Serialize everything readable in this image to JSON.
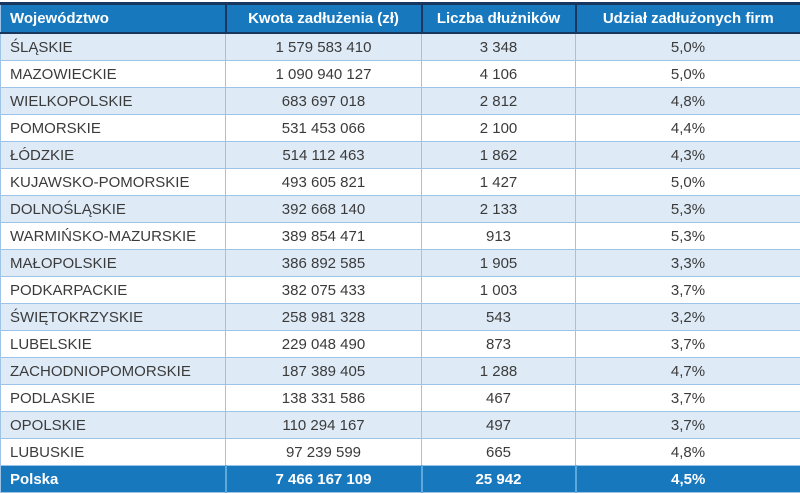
{
  "chart_data": {
    "type": "table",
    "columns": [
      "Województwo",
      "Kwota zadłużenia (zł)",
      "Liczba dłużników",
      "Udział zadłużonych firm"
    ],
    "rows": [
      [
        "ŚLĄSKIE",
        "1 579 583 410",
        "3 348",
        "5,0%"
      ],
      [
        "MAZOWIECKIE",
        "1 090 940 127",
        "4 106",
        "5,0%"
      ],
      [
        "WIELKOPOLSKIE",
        "683 697 018",
        "2 812",
        "4,8%"
      ],
      [
        "POMORSKIE",
        "531 453 066",
        "2 100",
        "4,4%"
      ],
      [
        "ŁÓDZKIE",
        "514 112 463",
        "1 862",
        "4,3%"
      ],
      [
        "KUJAWSKO-POMORSKIE",
        "493 605 821",
        "1 427",
        "5,0%"
      ],
      [
        "DOLNOŚLĄSKIE",
        "392 668 140",
        "2 133",
        "5,3%"
      ],
      [
        "WARMIŃSKO-MAZURSKIE",
        "389 854 471",
        "913",
        "5,3%"
      ],
      [
        "MAŁOPOLSKIE",
        "386 892 585",
        "1 905",
        "3,3%"
      ],
      [
        "PODKARPACKIE",
        "382 075 433",
        "1 003",
        "3,7%"
      ],
      [
        "ŚWIĘTOKRZYSKIE",
        "258 981 328",
        "543",
        "3,2%"
      ],
      [
        "LUBELSKIE",
        "229 048 490",
        "873",
        "3,7%"
      ],
      [
        "ZACHODNIOPOMORSKIE",
        "187 389 405",
        "1 288",
        "4,7%"
      ],
      [
        "PODLASKIE",
        "138 331 586",
        "467",
        "3,7%"
      ],
      [
        "OPOLSKIE",
        "110 294 167",
        "497",
        "3,7%"
      ],
      [
        "LUBUSKIE",
        "97 239 599",
        "665",
        "4,8%"
      ]
    ],
    "footer": [
      "Polska",
      "7 466 167 109",
      "25 942",
      "4,5%"
    ]
  },
  "colors": {
    "header_bg": "#1878BE",
    "band_bg": "#DEEAF6",
    "border_dark": "#17375E",
    "border_light": "#9DC3E6",
    "border_footer": "#5FA8DC",
    "text": "#3B3B3B",
    "header_text": "#FFFFFF"
  }
}
